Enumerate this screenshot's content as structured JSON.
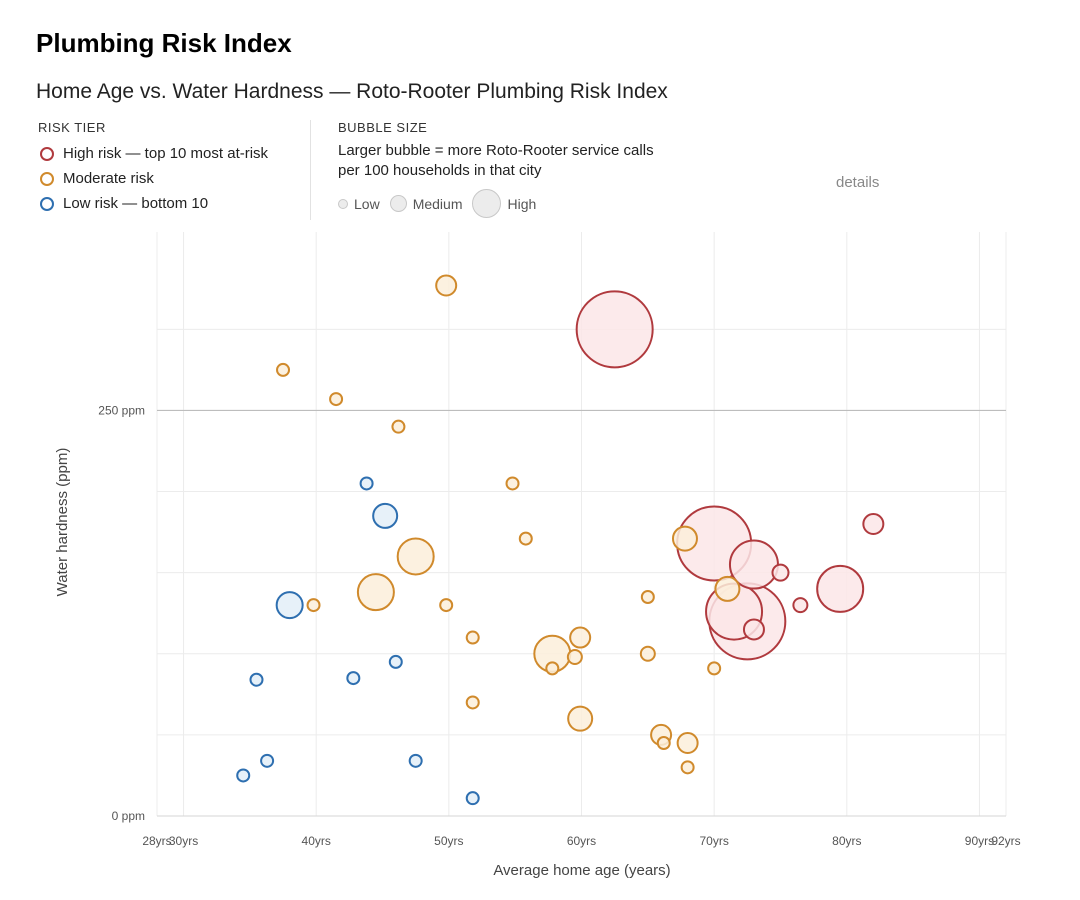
{
  "page_title": "Plumbing Risk Index",
  "details_text": "details",
  "legend": {
    "risk_tier": {
      "heading": "RISK TIER",
      "items": [
        {
          "label": "High risk — top 10 most at-risk",
          "color": "#b03a3e"
        },
        {
          "label": "Moderate risk",
          "color": "#d08a2c"
        },
        {
          "label": "Low risk — bottom 10",
          "color": "#2e6fb0"
        }
      ]
    },
    "bubble_size": {
      "heading": "BUBBLE SIZE",
      "description_lines": [
        "Larger bubble = more Roto-Rooter service calls",
        "per 100 households in that city"
      ],
      "levels": [
        "Low",
        "Medium",
        "High"
      ]
    }
  },
  "chart_data": {
    "type": "scatter",
    "title": "Home Age vs. Water Hardness — Roto-Rooter Plumbing Risk Index",
    "xlabel": "Average home age (years)",
    "ylabel": "Water hardness (ppm)",
    "xlim": [
      28,
      92
    ],
    "ylim": [
      0,
      360
    ],
    "x_ticks": [
      {
        "value": 28,
        "label": "28yrs"
      },
      {
        "value": 30,
        "label": "30yrs"
      },
      {
        "value": 40,
        "label": "40yrs"
      },
      {
        "value": 50,
        "label": "50yrs"
      },
      {
        "value": 60,
        "label": "60yrs"
      },
      {
        "value": 70,
        "label": "70yrs"
      },
      {
        "value": 80,
        "label": "80yrs"
      },
      {
        "value": 90,
        "label": "90yrs"
      },
      {
        "value": 92,
        "label": "92yrs"
      }
    ],
    "y_ticks": [
      {
        "value": 0,
        "label": "0 ppm"
      },
      {
        "value": 250,
        "label": "250 ppm"
      }
    ],
    "y_gridlines": [
      50,
      100,
      150,
      200,
      300
    ],
    "highlight_line": 250,
    "grid": true,
    "series": [
      {
        "name": "High risk — top 10 most at-risk",
        "color": "#b03a3e",
        "fill": "#fbe6e7",
        "points": [
          {
            "x": 62.5,
            "y": 300,
            "size": 38
          },
          {
            "x": 70.0,
            "y": 168,
            "size": 37
          },
          {
            "x": 72.5,
            "y": 120,
            "size": 38
          },
          {
            "x": 71.5,
            "y": 126,
            "size": 28
          },
          {
            "x": 73.0,
            "y": 155,
            "size": 24
          },
          {
            "x": 79.5,
            "y": 140,
            "size": 23
          },
          {
            "x": 82.0,
            "y": 180,
            "size": 10
          },
          {
            "x": 75.0,
            "y": 150,
            "size": 8
          },
          {
            "x": 76.5,
            "y": 130,
            "size": 7
          },
          {
            "x": 73.0,
            "y": 115,
            "size": 10
          }
        ]
      },
      {
        "name": "Moderate risk",
        "color": "#d08a2c",
        "fill": "#fbeedb",
        "points": [
          {
            "x": 49.8,
            "y": 327,
            "size": 10
          },
          {
            "x": 37.5,
            "y": 275,
            "size": 6
          },
          {
            "x": 41.5,
            "y": 257,
            "size": 6
          },
          {
            "x": 46.2,
            "y": 240,
            "size": 6
          },
          {
            "x": 54.8,
            "y": 205,
            "size": 6
          },
          {
            "x": 55.8,
            "y": 171,
            "size": 6
          },
          {
            "x": 47.5,
            "y": 160,
            "size": 18
          },
          {
            "x": 44.5,
            "y": 138,
            "size": 18
          },
          {
            "x": 39.8,
            "y": 130,
            "size": 6
          },
          {
            "x": 49.8,
            "y": 130,
            "size": 6
          },
          {
            "x": 51.8,
            "y": 110,
            "size": 6
          },
          {
            "x": 57.8,
            "y": 100,
            "size": 18
          },
          {
            "x": 59.5,
            "y": 98,
            "size": 7
          },
          {
            "x": 59.9,
            "y": 110,
            "size": 10
          },
          {
            "x": 57.8,
            "y": 91,
            "size": 6
          },
          {
            "x": 51.8,
            "y": 70,
            "size": 6
          },
          {
            "x": 59.9,
            "y": 60,
            "size": 12
          },
          {
            "x": 65.0,
            "y": 135,
            "size": 6
          },
          {
            "x": 65.0,
            "y": 100,
            "size": 7
          },
          {
            "x": 67.8,
            "y": 171,
            "size": 12
          },
          {
            "x": 71.0,
            "y": 140,
            "size": 12
          },
          {
            "x": 70.0,
            "y": 91,
            "size": 6
          },
          {
            "x": 66.0,
            "y": 50,
            "size": 10
          },
          {
            "x": 66.2,
            "y": 45,
            "size": 6
          },
          {
            "x": 68.0,
            "y": 45,
            "size": 10
          },
          {
            "x": 68.0,
            "y": 30,
            "size": 6
          }
        ]
      },
      {
        "name": "Low risk — bottom 10",
        "color": "#2e6fb0",
        "fill": "#e3eef8",
        "points": [
          {
            "x": 43.8,
            "y": 205,
            "size": 6
          },
          {
            "x": 45.2,
            "y": 185,
            "size": 12
          },
          {
            "x": 38.0,
            "y": 130,
            "size": 13
          },
          {
            "x": 46.0,
            "y": 95,
            "size": 6
          },
          {
            "x": 42.8,
            "y": 85,
            "size": 6
          },
          {
            "x": 35.5,
            "y": 84,
            "size": 6
          },
          {
            "x": 36.3,
            "y": 34,
            "size": 6
          },
          {
            "x": 34.5,
            "y": 25,
            "size": 6
          },
          {
            "x": 47.5,
            "y": 34,
            "size": 6
          },
          {
            "x": 51.8,
            "y": 11,
            "size": 6
          }
        ]
      }
    ]
  }
}
